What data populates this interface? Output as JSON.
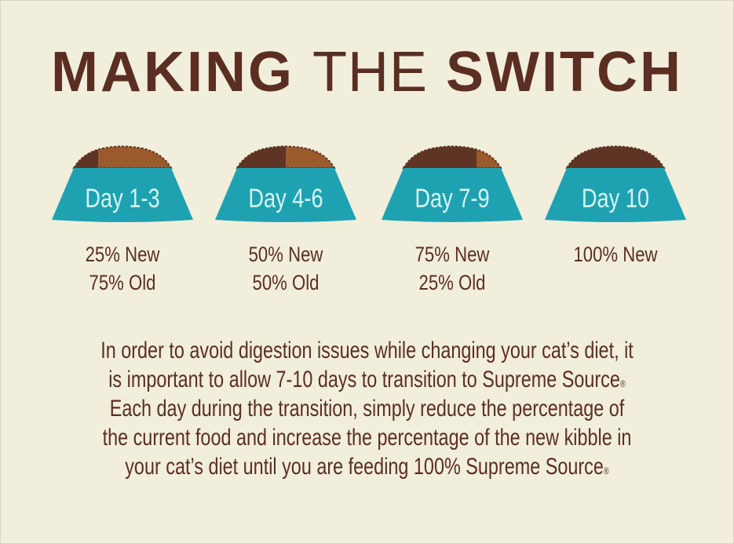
{
  "title": {
    "part1": "MAKING",
    "part2": "THE",
    "part3": "SWITCH"
  },
  "colors": {
    "background": "#f1eedb",
    "text": "#5b2e22",
    "bowl": "#1ea2b2",
    "bowl_text": "#d6f4ee",
    "new_food": "#5e3424",
    "old_food": "#9a5a2c"
  },
  "steps": [
    {
      "label": "Day 1-3",
      "new": "25% New",
      "old": "75% Old",
      "new_fraction": 0.25
    },
    {
      "label": "Day 4-6",
      "new": "50% New",
      "old": "50% Old",
      "new_fraction": 0.5
    },
    {
      "label": "Day 7-9",
      "new": "75% New",
      "old": "25% Old",
      "new_fraction": 0.75
    },
    {
      "label": "Day 10",
      "new": "100% New",
      "old": "",
      "new_fraction": 1.0
    }
  ],
  "paragraph": {
    "lines": [
      "In order to avoid digestion issues while changing your cat’s diet, it",
      "is important to allow 7-10 days to transition to Supreme Source",
      "Each day during the transition, simply reduce the percentage of",
      "the current food and increase the percentage of the new kibble in",
      "your cat’s diet until you are feeding 100% Supreme Source"
    ],
    "registered": "®"
  }
}
